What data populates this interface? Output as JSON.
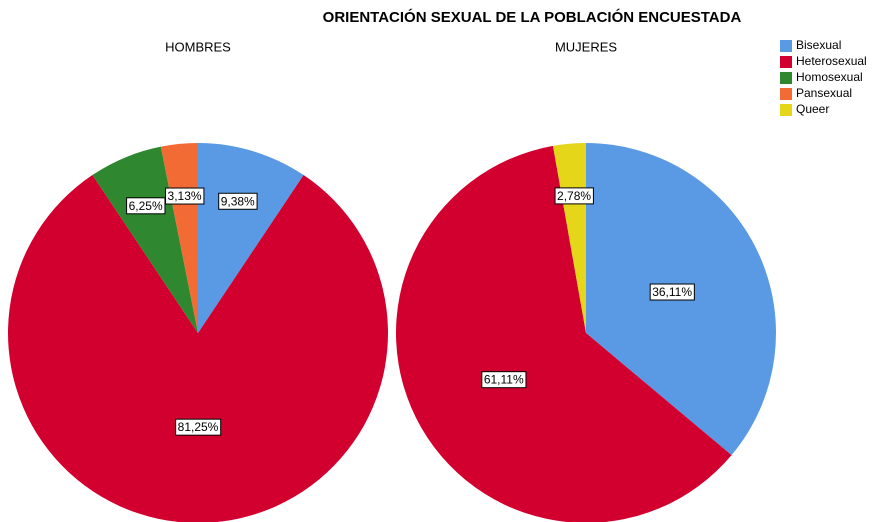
{
  "title": "ORIENTACIÓN SEXUAL DE LA POBLACIÓN ENCUESTADA",
  "legend": {
    "categories": [
      "Bisexual",
      "Heterosexual",
      "Homosexual",
      "Pansexual",
      "Queer"
    ],
    "colors": [
      "#5a9ae5",
      "#d2002f",
      "#2f872f",
      "#f26b35",
      "#e5d619"
    ]
  },
  "chart_data": [
    {
      "type": "pie",
      "title": "HOMBRES",
      "categories": [
        "Bisexual",
        "Heterosexual",
        "Homosexual",
        "Pansexual"
      ],
      "values": [
        9.38,
        81.25,
        6.25,
        3.13
      ],
      "value_labels": [
        "9,38%",
        "81,25%",
        "6,25%",
        "3,13%"
      ]
    },
    {
      "type": "pie",
      "title": "MUJERES",
      "categories": [
        "Bisexual",
        "Heterosexual",
        "Queer"
      ],
      "values": [
        36.11,
        61.11,
        2.78
      ],
      "value_labels": [
        "36,11%",
        "61,11%",
        "2,78%"
      ]
    }
  ]
}
